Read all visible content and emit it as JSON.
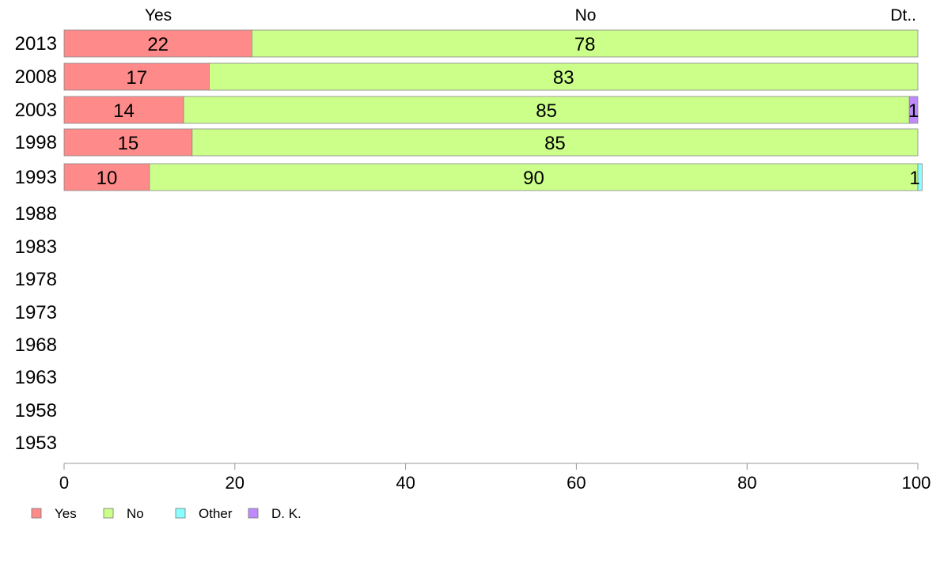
{
  "chart_data": {
    "type": "bar",
    "orientation": "horizontal",
    "stacked": true,
    "categories": [
      "2013",
      "2008",
      "2003",
      "1998",
      "1993",
      "1988",
      "1983",
      "1978",
      "1973",
      "1968",
      "1963",
      "1958",
      "1953"
    ],
    "series": [
      {
        "name": "Yes",
        "color": "#ff8a8a",
        "values": [
          22,
          17,
          14,
          15,
          10,
          null,
          null,
          null,
          null,
          null,
          null,
          null,
          null
        ],
        "labels": [
          "22",
          "17",
          "14",
          "15",
          "10",
          "",
          "",
          "",
          "",
          "",
          "",
          "",
          ""
        ]
      },
      {
        "name": "No",
        "color": "#ccff8a",
        "values": [
          78,
          83,
          85,
          85,
          90,
          null,
          null,
          null,
          null,
          null,
          null,
          null,
          null
        ],
        "labels": [
          "78",
          "83",
          "85",
          "85",
          "90",
          "",
          "",
          "",
          "",
          "",
          "",
          "",
          ""
        ]
      },
      {
        "name": "Other",
        "color": "#8affff",
        "values": [
          0,
          0,
          0,
          0,
          0.5,
          null,
          null,
          null,
          null,
          null,
          null,
          null,
          null
        ],
        "labels": [
          "",
          "",
          "",
          "",
          "1",
          "",
          "",
          "",
          "",
          "",
          "",
          "",
          ""
        ]
      },
      {
        "name": "D. K.",
        "color": "#c08aff",
        "values": [
          0,
          0,
          1,
          0,
          0,
          null,
          null,
          null,
          null,
          null,
          null,
          null,
          null
        ],
        "labels": [
          "",
          "",
          "1",
          "",
          "",
          "",
          "",
          "",
          "",
          "",
          "",
          "",
          ""
        ]
      }
    ],
    "column_headers": [
      "Yes",
      "No",
      "Dt.."
    ],
    "xlim": [
      0,
      100
    ],
    "xticks": [
      0,
      20,
      40,
      60,
      80,
      100
    ],
    "legend": {
      "position": "bottom-left",
      "entries": [
        "Yes",
        "No",
        "Other",
        "D. K."
      ]
    },
    "grid": false
  }
}
